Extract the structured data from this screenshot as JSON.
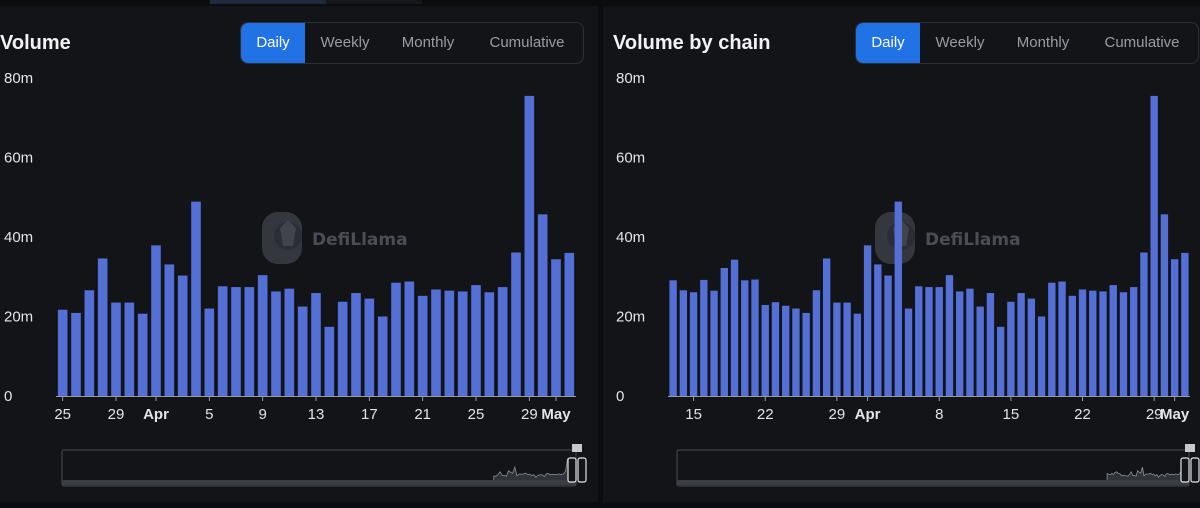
{
  "colors": {
    "bar": "#5470d6",
    "accent": "#2172e5",
    "background": "#131418"
  },
  "watermark": "DefiLlama",
  "panels": [
    {
      "title": "Volume",
      "tabs": [
        {
          "label": "Daily",
          "active": true
        },
        {
          "label": "Weekly",
          "active": false
        },
        {
          "label": "Monthly",
          "active": false
        },
        {
          "label": "Cumulative",
          "active": false
        }
      ]
    },
    {
      "title": "Volume by chain",
      "tabs": [
        {
          "label": "Daily",
          "active": true
        },
        {
          "label": "Weekly",
          "active": false
        },
        {
          "label": "Monthly",
          "active": false
        },
        {
          "label": "Cumulative",
          "active": false
        }
      ]
    }
  ],
  "chart_data": [
    {
      "type": "bar",
      "title": "Volume",
      "ylim": [
        0,
        80000000
      ],
      "ytick_labels": [
        "0",
        "20m",
        "40m",
        "60m",
        "80m"
      ],
      "xtick_labels": [
        {
          "label": "25",
          "bold": false,
          "index": 0
        },
        {
          "label": "29",
          "bold": false,
          "index": 4
        },
        {
          "label": "Apr",
          "bold": true,
          "index": 7
        },
        {
          "label": "5",
          "bold": false,
          "index": 11
        },
        {
          "label": "9",
          "bold": false,
          "index": 15
        },
        {
          "label": "13",
          "bold": false,
          "index": 19
        },
        {
          "label": "17",
          "bold": false,
          "index": 23
        },
        {
          "label": "21",
          "bold": false,
          "index": 27
        },
        {
          "label": "25",
          "bold": false,
          "index": 31
        },
        {
          "label": "29",
          "bold": false,
          "index": 35
        },
        {
          "label": "May",
          "bold": true,
          "index": 37
        }
      ],
      "values": [
        21.7,
        20.9,
        26.6,
        34.6,
        23.5,
        23.5,
        20.7,
        37.9,
        33.1,
        30.3,
        48.9,
        22.0,
        27.6,
        27.4,
        27.4,
        30.4,
        26.3,
        27.0,
        22.5,
        25.9,
        17.4,
        23.7,
        25.9,
        24.5,
        20.0,
        28.5,
        28.8,
        25.2,
        26.8,
        26.5,
        26.3,
        27.9,
        26.1,
        27.4,
        36.1,
        75.5,
        45.7,
        34.4,
        36.0
      ],
      "unit": "m"
    },
    {
      "type": "bar",
      "title": "Volume by chain",
      "ylim": [
        0,
        80000000
      ],
      "ytick_labels": [
        "0",
        "20m",
        "40m",
        "60m",
        "80m"
      ],
      "xtick_labels": [
        {
          "label": "15",
          "bold": false,
          "index": 2
        },
        {
          "label": "22",
          "bold": false,
          "index": 9
        },
        {
          "label": "29",
          "bold": false,
          "index": 16
        },
        {
          "label": "Apr",
          "bold": true,
          "index": 19
        },
        {
          "label": "8",
          "bold": false,
          "index": 26
        },
        {
          "label": "15",
          "bold": false,
          "index": 33
        },
        {
          "label": "22",
          "bold": false,
          "index": 40
        },
        {
          "label": "29",
          "bold": false,
          "index": 47
        },
        {
          "label": "May",
          "bold": true,
          "index": 49
        }
      ],
      "values": [
        29.1,
        26.6,
        26.1,
        29.2,
        26.5,
        32.2,
        34.3,
        29.1,
        29.3,
        22.9,
        23.6,
        22.7,
        22.0,
        20.9,
        26.6,
        34.6,
        23.5,
        23.5,
        20.7,
        37.9,
        33.1,
        30.3,
        48.9,
        22.0,
        27.6,
        27.4,
        27.4,
        30.4,
        26.3,
        27.0,
        22.5,
        25.9,
        17.4,
        23.7,
        25.9,
        24.5,
        20.0,
        28.5,
        28.8,
        25.2,
        26.8,
        26.5,
        26.3,
        27.9,
        26.1,
        27.4,
        36.1,
        75.5,
        45.7,
        34.4,
        36.0
      ],
      "unit": "m"
    }
  ]
}
